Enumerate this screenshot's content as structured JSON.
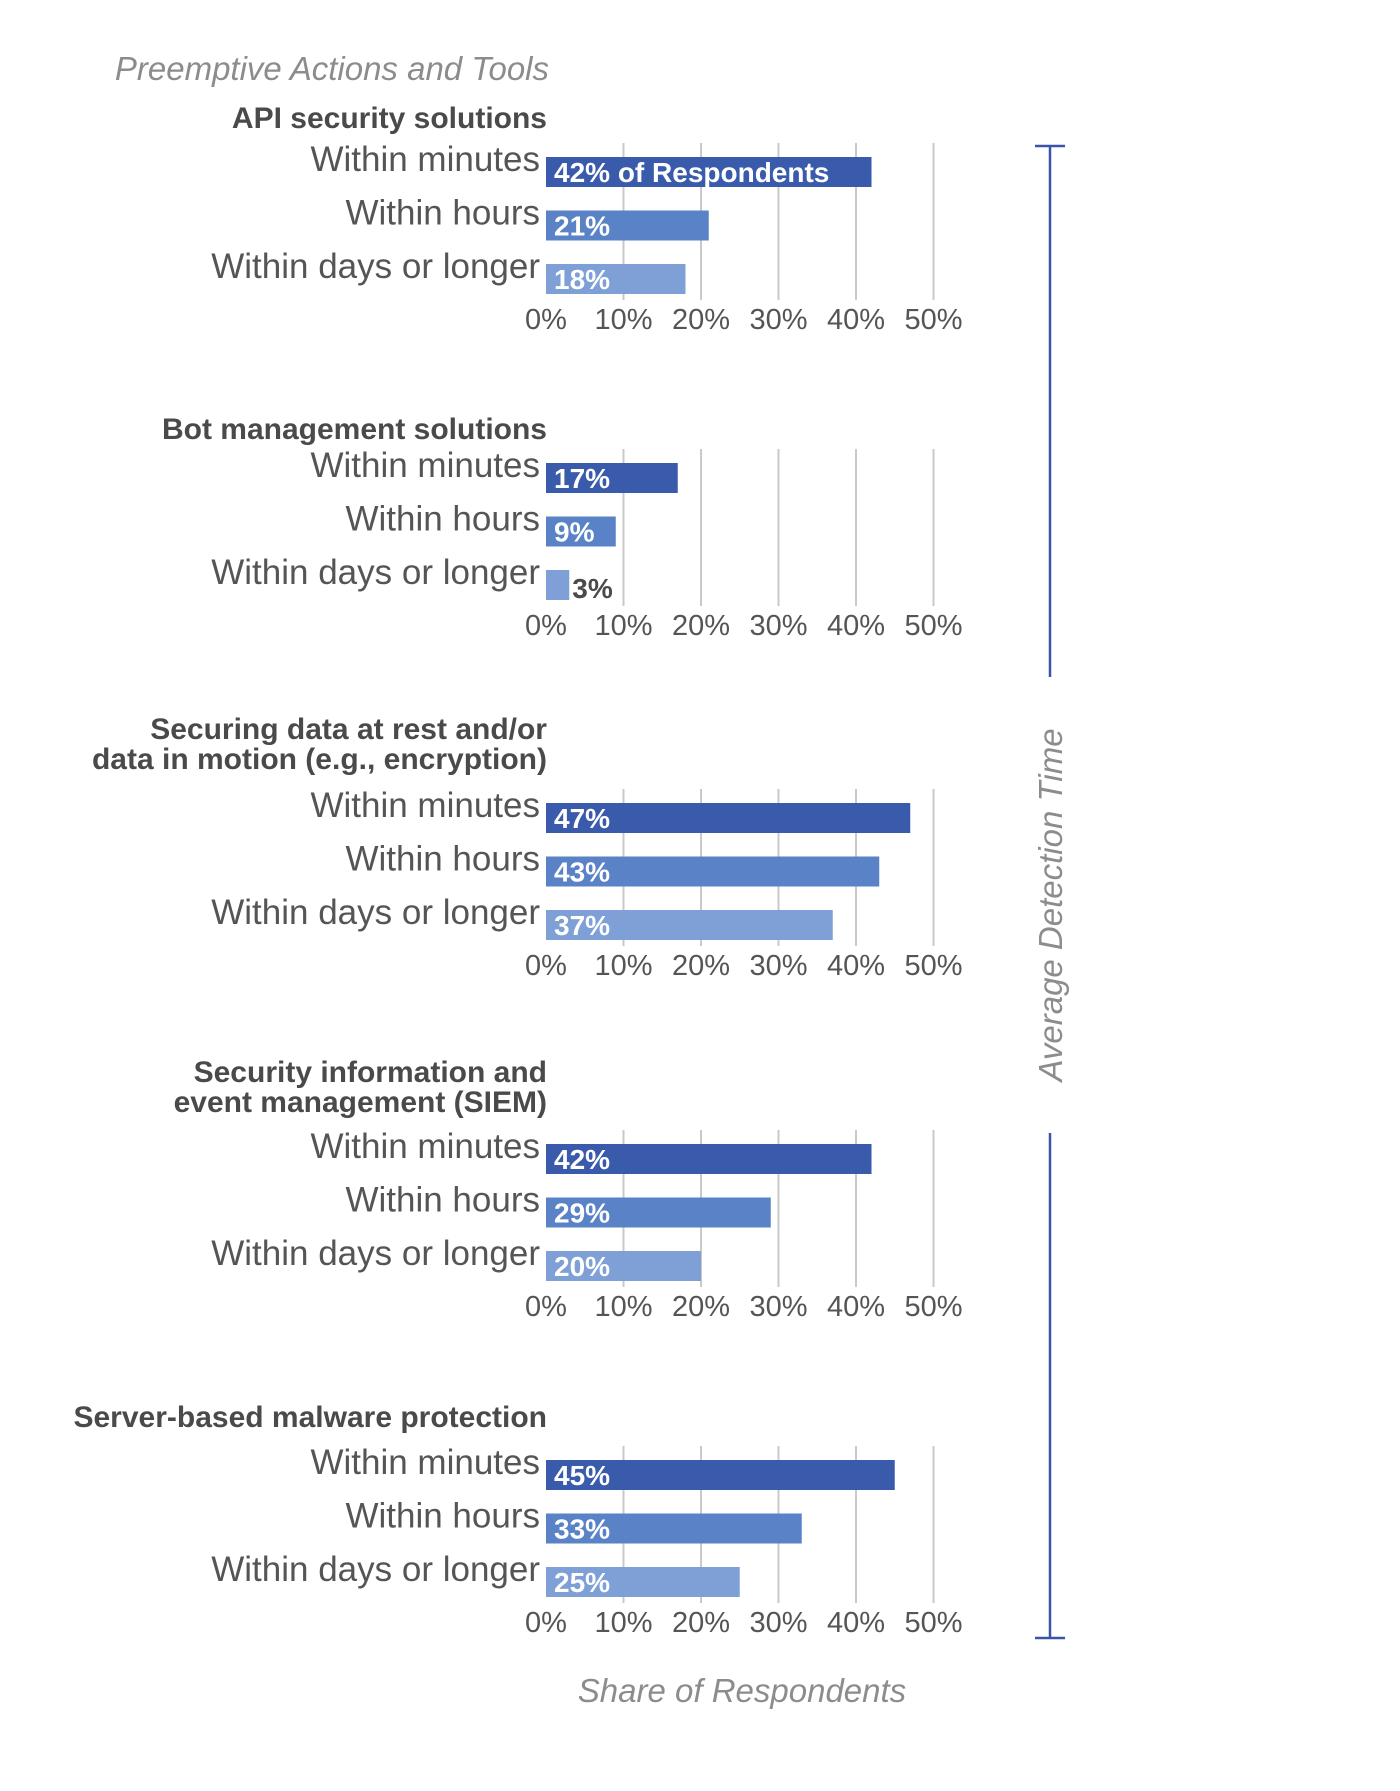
{
  "chart_data": {
    "type": "bar",
    "orientation": "horizontal",
    "title": "Preemptive Actions and Tools",
    "xlabel": "Share of Respondents",
    "side_label": "Average Detection Time",
    "xlim": [
      0,
      50
    ],
    "x_ticks": [
      "0%",
      "10%",
      "20%",
      "30%",
      "40%",
      "50%"
    ],
    "grid": true,
    "categories": [
      "Within minutes",
      "Within hours",
      "Within days or longer"
    ],
    "colors": [
      "#3a5bab",
      "#5a82c6",
      "#7ea0d6"
    ],
    "panels": [
      {
        "title": [
          "API security solutions"
        ],
        "values": [
          42,
          21,
          18
        ],
        "labels": [
          "42% of Respondents",
          "21%",
          "18%"
        ]
      },
      {
        "title": [
          "Bot management solutions"
        ],
        "values": [
          17,
          9,
          3
        ],
        "labels": [
          "17%",
          "9%",
          "3%"
        ]
      },
      {
        "title": [
          "Securing data at rest and/or",
          "data in motion (e.g., encryption)"
        ],
        "values": [
          47,
          43,
          37
        ],
        "labels": [
          "47%",
          "43%",
          "37%"
        ]
      },
      {
        "title": [
          "Security information and",
          "event management (SIEM)"
        ],
        "values": [
          42,
          29,
          20
        ],
        "labels": [
          "42%",
          "29%",
          "20%"
        ]
      },
      {
        "title": [
          "Server-based malware protection"
        ],
        "values": [
          45,
          33,
          25
        ],
        "labels": [
          "45%",
          "33%",
          "25%"
        ]
      }
    ]
  }
}
